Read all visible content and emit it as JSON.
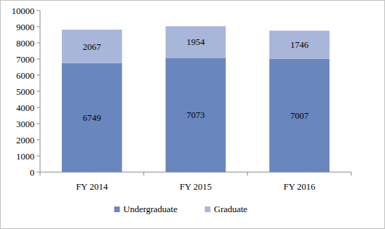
{
  "chart_data": {
    "type": "bar",
    "stacked": true,
    "data_labels": true,
    "legend": "bottom",
    "grid": false,
    "categories": [
      "FY 2014",
      "FY 2015",
      "FY 2016"
    ],
    "series": [
      {
        "name": "Undergraduate",
        "color": "#6a86bf",
        "values": [
          6749,
          7073,
          7007
        ]
      },
      {
        "name": "Graduate",
        "color": "#a8b6da",
        "values": [
          2067,
          1954,
          1746
        ]
      }
    ],
    "ylim": [
      0,
      10000
    ],
    "yticks": [
      0,
      1000,
      2000,
      3000,
      4000,
      5000,
      6000,
      7000,
      8000,
      9000,
      10000
    ]
  }
}
